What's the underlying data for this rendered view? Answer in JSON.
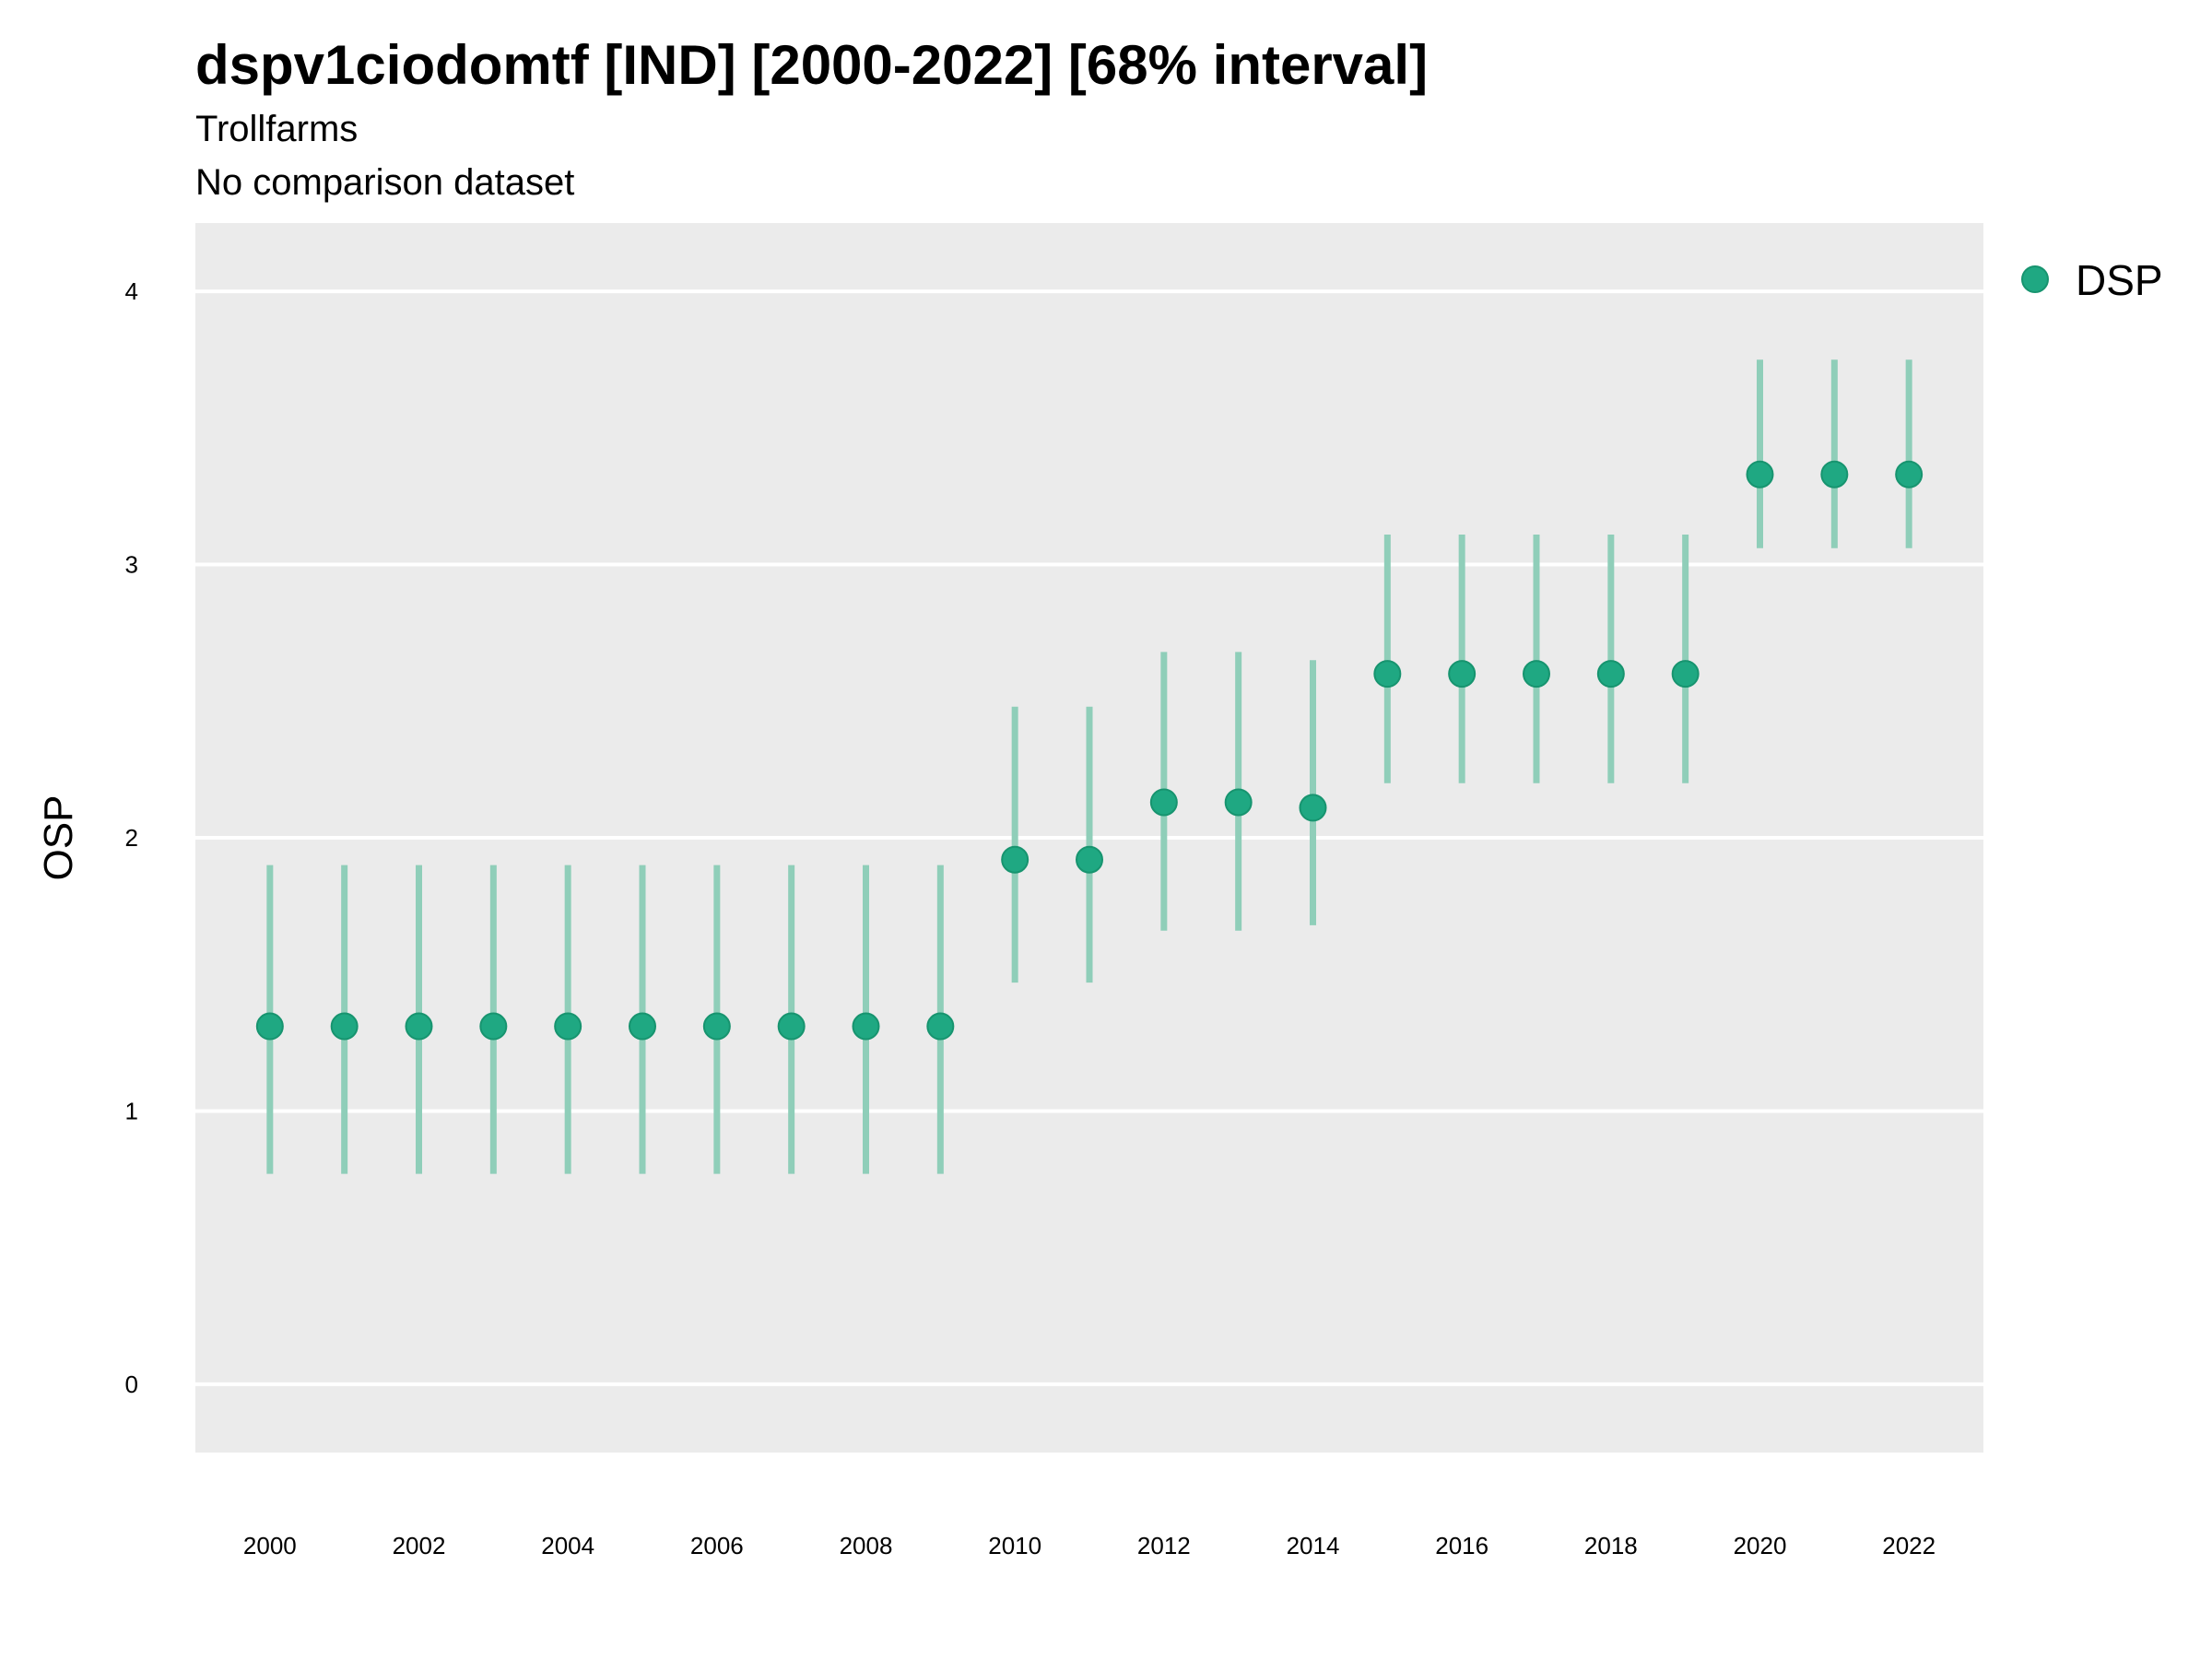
{
  "header": {
    "title": "dspv1ciodomtf [IND] [2000-2022] [68% interval]",
    "subtitle": "Trollfarms",
    "subtitle2": "No comparison dataset"
  },
  "colors": {
    "point": "#1fa882",
    "errorbar": "#8fceb9",
    "panel": "#ebebeb",
    "grid": "#ffffff"
  },
  "chart_data": {
    "type": "scatter",
    "title": "dspv1ciodomtf [IND] [2000-2022] [68% interval]",
    "subtitle": "Trollfarms",
    "xlabel": "",
    "ylabel": "OSP",
    "xlim": [
      1999,
      2023
    ],
    "ylim": [
      -0.25,
      4.25
    ],
    "x_ticks": [
      2000,
      2002,
      2004,
      2006,
      2008,
      2010,
      2012,
      2014,
      2016,
      2018,
      2020,
      2022
    ],
    "y_ticks": [
      0,
      1,
      2,
      3,
      4
    ],
    "grid": true,
    "legend": {
      "position": "top-right",
      "entries": [
        "DSP"
      ]
    },
    "series": [
      {
        "name": "DSP",
        "x": [
          2000,
          2001,
          2002,
          2003,
          2004,
          2005,
          2006,
          2007,
          2008,
          2009,
          2010,
          2011,
          2012,
          2013,
          2014,
          2015,
          2016,
          2017,
          2018,
          2019,
          2020,
          2021,
          2022
        ],
        "y": [
          1.31,
          1.31,
          1.31,
          1.31,
          1.31,
          1.31,
          1.31,
          1.31,
          1.31,
          1.31,
          1.92,
          1.92,
          2.13,
          2.13,
          2.11,
          2.6,
          2.6,
          2.6,
          2.6,
          2.6,
          3.33,
          3.33,
          3.33
        ],
        "lower": [
          0.77,
          0.77,
          0.77,
          0.77,
          0.77,
          0.77,
          0.77,
          0.77,
          0.77,
          0.77,
          1.47,
          1.47,
          1.66,
          1.66,
          1.68,
          2.2,
          2.2,
          2.2,
          2.2,
          2.2,
          3.06,
          3.06,
          3.06
        ],
        "upper": [
          1.9,
          1.9,
          1.9,
          1.9,
          1.9,
          1.9,
          1.9,
          1.9,
          1.9,
          1.9,
          2.48,
          2.48,
          2.68,
          2.68,
          2.65,
          3.11,
          3.11,
          3.11,
          3.11,
          3.11,
          3.75,
          3.75,
          3.75
        ]
      }
    ]
  }
}
